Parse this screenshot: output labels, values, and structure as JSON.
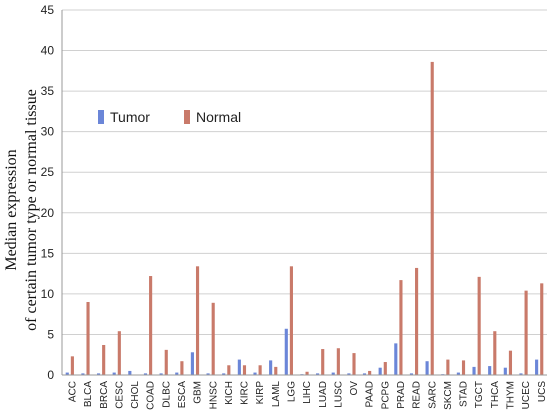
{
  "chart_data": {
    "type": "bar",
    "ylabel_line1": "Median expression",
    "ylabel_line2": "of certain tumor type or normal tissue",
    "ylim": [
      0,
      45
    ],
    "yticks": [
      0,
      5,
      10,
      15,
      20,
      25,
      30,
      35,
      40,
      45
    ],
    "grid": "horizontal",
    "legend_position": "upper-left",
    "categories": [
      "ACC",
      "BLCA",
      "BRCA",
      "CESC",
      "CHOL",
      "COAD",
      "DLBC",
      "ESCA",
      "GBM",
      "HNSC",
      "KICH",
      "KIRC",
      "KIRP",
      "LAML",
      "LGG",
      "LIHC",
      "LUAD",
      "LUSC",
      "OV",
      "PAAD",
      "PCPG",
      "PRAD",
      "READ",
      "SARC",
      "SKCM",
      "STAD",
      "TGCT",
      "THCA",
      "THYM",
      "UCEC",
      "UCS"
    ],
    "series": [
      {
        "name": "Tumor",
        "color": "#6b86d8",
        "values": [
          0.3,
          0.2,
          0.2,
          0.3,
          0.5,
          0.2,
          0.2,
          0.3,
          2.8,
          0.2,
          0.2,
          1.9,
          0.3,
          1.8,
          5.7,
          0.1,
          0.2,
          0.3,
          0.2,
          0.2,
          0.9,
          3.9,
          0.2,
          1.7,
          0.1,
          0.3,
          1.0,
          1.1,
          0.9,
          0.2,
          1.9
        ]
      },
      {
        "name": "Normal",
        "color": "#c97a6a",
        "values": [
          2.3,
          9.0,
          3.7,
          5.4,
          0.0,
          12.2,
          3.1,
          1.7,
          13.4,
          8.9,
          1.2,
          1.2,
          1.2,
          1.0,
          13.4,
          0.4,
          3.2,
          3.3,
          2.7,
          0.5,
          1.6,
          11.7,
          13.2,
          38.6,
          1.9,
          1.8,
          12.1,
          5.4,
          3.0,
          10.4,
          11.3
        ]
      }
    ]
  }
}
